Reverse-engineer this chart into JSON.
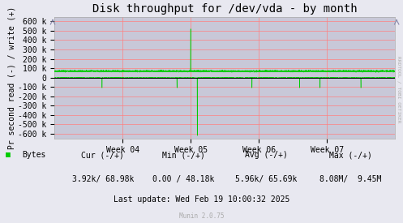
{
  "title": "Disk throughput for /dev/vda - by month",
  "ylabel": "Pr second read (-) / write (+)",
  "background_color": "#e8e8f0",
  "plot_bg_color": "#c8c8d8",
  "grid_color": "#ff8080",
  "line_color": "#00cc00",
  "ylim": [
    -650000,
    650000
  ],
  "yticks": [
    -600000,
    -500000,
    -400000,
    -300000,
    -200000,
    -100000,
    0,
    100000,
    200000,
    300000,
    400000,
    500000,
    600000
  ],
  "ytick_labels": [
    "-600 k",
    "-500 k",
    "-400 k",
    "-300 k",
    "-200 k",
    "-100 k",
    "0",
    "100 k",
    "200 k",
    "300 k",
    "400 k",
    "500 k",
    "600 k"
  ],
  "xtick_labels": [
    "Week 04",
    "Week 05",
    "Week 06",
    "Week 07"
  ],
  "xtick_positions": [
    1,
    2,
    3,
    4
  ],
  "xlim": [
    0,
    5
  ],
  "legend_label": "Bytes",
  "legend_color": "#00cc00",
  "cur_minus": "3.92k",
  "cur_plus": "68.98k",
  "min_minus": "0.00",
  "min_plus": "48.18k",
  "avg_minus": "5.96k",
  "avg_plus": "65.69k",
  "max_minus": "8.08M",
  "max_plus": "9.45M",
  "last_update": "Last update: Wed Feb 19 10:00:32 2025",
  "munin_version": "Munin 2.0.75",
  "rrdtool_label": "RRDTOOL / TOBI OETIKER",
  "title_fontsize": 10,
  "axis_label_fontsize": 7,
  "tick_fontsize": 7,
  "footer_fontsize": 7
}
